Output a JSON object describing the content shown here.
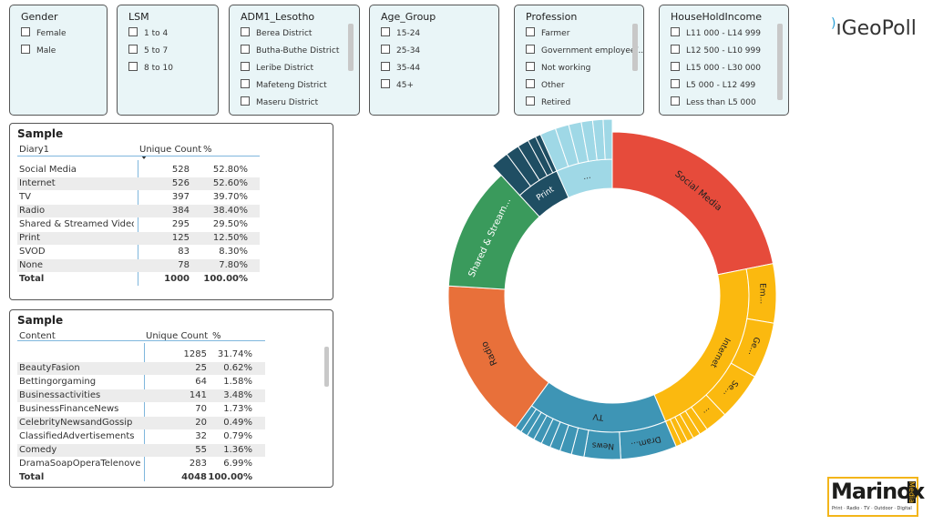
{
  "slicers": [
    {
      "title": "Gender",
      "options": [
        "Female",
        "Male"
      ]
    },
    {
      "title": "LSM",
      "options": [
        "1 to 4",
        "5 to 7",
        "8 to 10"
      ]
    },
    {
      "title": "ADM1_Lesotho",
      "options": [
        "Berea District",
        "Butha-Buthe District",
        "Leribe District",
        "Mafeteng District",
        "Maseru District"
      ]
    },
    {
      "title": "Age_Group",
      "options": [
        "15-24",
        "25-34",
        "35-44",
        "45+"
      ]
    },
    {
      "title": "Profession",
      "options": [
        "Farmer",
        "Government employee/...",
        "Not working",
        "Other",
        "Retired"
      ]
    },
    {
      "title": "HouseHoldIncome",
      "options": [
        "L11 000 - L14 999",
        "L12 500 - L10 999",
        "L15 000 - L30 000",
        "L5 000 - L12 499",
        "Less than L5 000"
      ]
    }
  ],
  "logo": "GeoPoll",
  "table1": {
    "title": "Sample",
    "columns": [
      "Diary1",
      "Unique Count",
      "%"
    ],
    "rows": [
      [
        "Social Media",
        528,
        "52.80%"
      ],
      [
        "Internet",
        526,
        "52.60%"
      ],
      [
        "TV",
        397,
        "39.70%"
      ],
      [
        "Radio",
        384,
        "38.40%"
      ],
      [
        "Shared & Streamed Videos",
        295,
        "29.50%"
      ],
      [
        "Print",
        125,
        "12.50%"
      ],
      [
        "SVOD",
        83,
        "8.30%"
      ],
      [
        "None",
        78,
        "7.80%"
      ]
    ],
    "total": [
      "Total",
      1000,
      "100.00%"
    ]
  },
  "table2": {
    "title": "Sample",
    "columns": [
      "Content",
      "Unique Count",
      "%"
    ],
    "rows": [
      [
        null,
        1285,
        "31.74%"
      ],
      [
        "BeautyFasion",
        25,
        "0.62%"
      ],
      [
        "Bettingorgaming",
        64,
        "1.58%"
      ],
      [
        "Businessactivities",
        141,
        "3.48%"
      ],
      [
        "BusinessFinanceNews",
        70,
        "1.73%"
      ],
      [
        "CelebrityNewsandGossip",
        20,
        "0.49%"
      ],
      [
        "ClassifiedAdvertisements",
        32,
        "0.79%"
      ],
      [
        "Comedy",
        55,
        "1.36%"
      ],
      [
        "DramaSoapOperaTelenovela",
        283,
        "6.99%"
      ]
    ],
    "total": [
      "Total",
      4048,
      "100.00%"
    ]
  },
  "sunburst": {
    "type": "sunburst",
    "segments": [
      {
        "label": "Social Media",
        "color": "#e64b3b",
        "children": []
      },
      {
        "label": "Internet",
        "color": "#fbb90f",
        "children": [
          {
            "label": "Em...",
            "value": 141
          },
          {
            "label": "Ge...",
            "value": 134
          },
          {
            "label": "Se...",
            "value": 114
          },
          {
            "label": "...",
            "value": 54
          },
          {
            "label": null,
            "value": 20
          },
          {
            "label": null,
            "value": 18
          },
          {
            "label": null,
            "value": 16
          },
          {
            "label": null,
            "value": 15
          },
          {
            "label": null,
            "value": 14
          }
        ]
      },
      {
        "label": "TV",
        "color": "#3e95b5",
        "children": [
          {
            "label": "Dram...",
            "value": 134
          },
          {
            "label": "News",
            "value": 87
          },
          {
            "label": null,
            "value": 30
          },
          {
            "label": null,
            "value": 28
          },
          {
            "label": null,
            "value": 25
          },
          {
            "label": null,
            "value": 22
          },
          {
            "label": null,
            "value": 20
          },
          {
            "label": null,
            "value": 18
          },
          {
            "label": null,
            "value": 17
          },
          {
            "label": null,
            "value": 16
          }
        ]
      },
      {
        "label": "Radio",
        "color": "#e8703a",
        "children": []
      },
      {
        "label": "Shared & Stream...",
        "color": "#3a9a5c",
        "children": []
      },
      {
        "label": "Print",
        "color": "#1f4e63",
        "children": [
          {
            "label": null,
            "value": 40
          },
          {
            "label": null,
            "value": 30
          },
          {
            "label": null,
            "value": 25
          },
          {
            "label": null,
            "value": 18
          },
          {
            "label": null,
            "value": 12
          }
        ]
      },
      {
        "label": "...",
        "color": "#9fd8e6",
        "children": [
          {
            "label": null,
            "value": 35
          },
          {
            "label": null,
            "value": 30
          },
          {
            "label": null,
            "value": 28
          },
          {
            "label": null,
            "value": 25
          },
          {
            "label": null,
            "value": 23
          },
          {
            "label": null,
            "value": 20
          }
        ]
      }
    ]
  },
  "brand": {
    "name": "Marinox",
    "sub": "Media",
    "tagline": "Print · Radio · TV · Outdoor · Digital"
  }
}
